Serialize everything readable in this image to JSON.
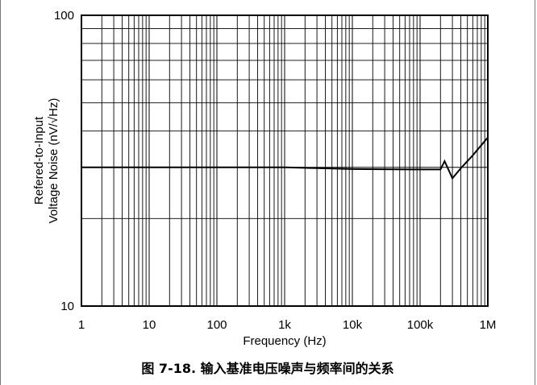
{
  "chart_data": {
    "type": "line",
    "xscale": "log",
    "yscale": "log",
    "xlim": [
      1,
      1000000
    ],
    "ylim": [
      10,
      100
    ],
    "xlabel": "Frequency (Hz)",
    "ylabel_lines": [
      "Refered-to-Input",
      "Voltage Noise (nV/√Hz)"
    ],
    "x_ticks": [
      1,
      10,
      100,
      1000,
      10000,
      100000,
      1000000
    ],
    "x_tick_labels": [
      "1",
      "10",
      "100",
      "1k",
      "10k",
      "100k",
      "1M"
    ],
    "y_ticks": [
      10,
      100
    ],
    "y_tick_labels": [
      "10",
      "100"
    ],
    "grid": true,
    "series": [
      {
        "x": [
          1,
          10,
          100,
          1000,
          3000,
          10000,
          100000,
          200000,
          230000,
          300000,
          400000,
          600000,
          1000000
        ],
        "y": [
          30,
          30,
          30,
          30,
          29.8,
          29.6,
          29.5,
          29.5,
          31.5,
          27.5,
          29.8,
          33,
          38
        ]
      }
    ]
  },
  "caption": "图 7-18. 输入基准电压噪声与频率间的关系",
  "colors": {
    "line": "#000000",
    "grid": "#000000",
    "background": "#ffffff"
  }
}
